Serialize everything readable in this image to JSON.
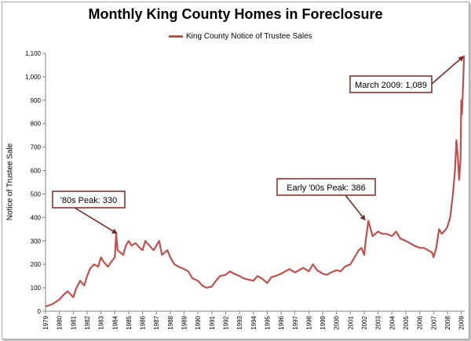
{
  "chart_data": {
    "type": "line",
    "title": "Monthly King County Homes in Foreclosure",
    "ylabel": "Notice of Trustee Sale",
    "xlabel": "",
    "legend": "top-center",
    "grid": false,
    "xlim": [
      1979,
      2009.25
    ],
    "ylim": [
      0,
      1100
    ],
    "y_ticks": [
      "0",
      "100",
      "200",
      "300",
      "400",
      "500",
      "600",
      "700",
      "800",
      "900",
      "1,000",
      "1,100"
    ],
    "x_ticks": [
      "1979",
      "1980",
      "1981",
      "1982",
      "1983",
      "1984",
      "1985",
      "1986",
      "1987",
      "1988",
      "1989",
      "1990",
      "1991",
      "1992",
      "1993",
      "1994",
      "1995",
      "1996",
      "1997",
      "1998",
      "1999",
      "2000",
      "2001",
      "2002",
      "2003",
      "2004",
      "2005",
      "2006",
      "2007",
      "2008",
      "2009"
    ],
    "series": [
      {
        "name": "King County Notice of Trustee Sales",
        "color": "#c0504d",
        "x": [
          1979.0,
          1979.5,
          1980.0,
          1980.3,
          1980.6,
          1981.0,
          1981.2,
          1981.5,
          1981.8,
          1982.0,
          1982.2,
          1982.5,
          1982.8,
          1983.0,
          1983.2,
          1983.5,
          1983.8,
          1984.0,
          1984.1,
          1984.2,
          1984.4,
          1984.6,
          1984.8,
          1985.0,
          1985.2,
          1985.5,
          1985.8,
          1986.0,
          1986.2,
          1986.5,
          1986.8,
          1987.0,
          1987.2,
          1987.4,
          1987.6,
          1987.8,
          1988.0,
          1988.3,
          1988.6,
          1989.0,
          1989.3,
          1989.6,
          1990.0,
          1990.3,
          1990.6,
          1991.0,
          1991.3,
          1991.6,
          1992.0,
          1992.3,
          1992.6,
          1993.0,
          1993.3,
          1993.6,
          1994.0,
          1994.3,
          1994.6,
          1995.0,
          1995.3,
          1995.6,
          1996.0,
          1996.3,
          1996.6,
          1997.0,
          1997.3,
          1997.6,
          1998.0,
          1998.3,
          1998.6,
          1999.0,
          1999.3,
          1999.6,
          2000.0,
          2000.3,
          2000.6,
          2001.0,
          2001.3,
          2001.6,
          2001.8,
          2002.0,
          2002.1,
          2002.3,
          2002.6,
          2003.0,
          2003.3,
          2003.6,
          2004.0,
          2004.3,
          2004.6,
          2005.0,
          2005.3,
          2005.6,
          2006.0,
          2006.3,
          2006.6,
          2006.9,
          2007.0,
          2007.2,
          2007.4,
          2007.6,
          2007.9,
          2008.0,
          2008.2,
          2008.4,
          2008.55,
          2008.65,
          2008.75,
          2008.85,
          2008.95,
          2009.0,
          2009.05,
          2009.1,
          2009.15,
          2009.2
        ],
        "values": [
          20,
          30,
          50,
          70,
          85,
          60,
          95,
          130,
          110,
          150,
          180,
          200,
          190,
          230,
          210,
          190,
          215,
          230,
          330,
          260,
          250,
          240,
          280,
          300,
          280,
          290,
          270,
          260,
          300,
          280,
          260,
          280,
          300,
          240,
          250,
          260,
          230,
          200,
          190,
          180,
          170,
          140,
          130,
          110,
          100,
          105,
          130,
          150,
          155,
          170,
          160,
          150,
          140,
          135,
          130,
          150,
          140,
          120,
          145,
          150,
          160,
          170,
          180,
          165,
          175,
          185,
          170,
          200,
          175,
          160,
          155,
          165,
          175,
          170,
          190,
          200,
          230,
          260,
          270,
          240,
          300,
          386,
          320,
          340,
          330,
          330,
          320,
          340,
          310,
          300,
          290,
          280,
          270,
          270,
          260,
          250,
          230,
          270,
          350,
          330,
          350,
          360,
          400,
          500,
          600,
          730,
          660,
          560,
          650,
          900,
          840,
          920,
          990,
          1089
        ]
      }
    ],
    "annotations": [
      {
        "text": "'80s Peak: 330",
        "x": 1984.2,
        "y": 330
      },
      {
        "text": "Early '00s Peak: 386",
        "x": 2002.1,
        "y": 386
      },
      {
        "text": "March 2009: 1,089",
        "x": 2009.2,
        "y": 1089
      }
    ]
  }
}
